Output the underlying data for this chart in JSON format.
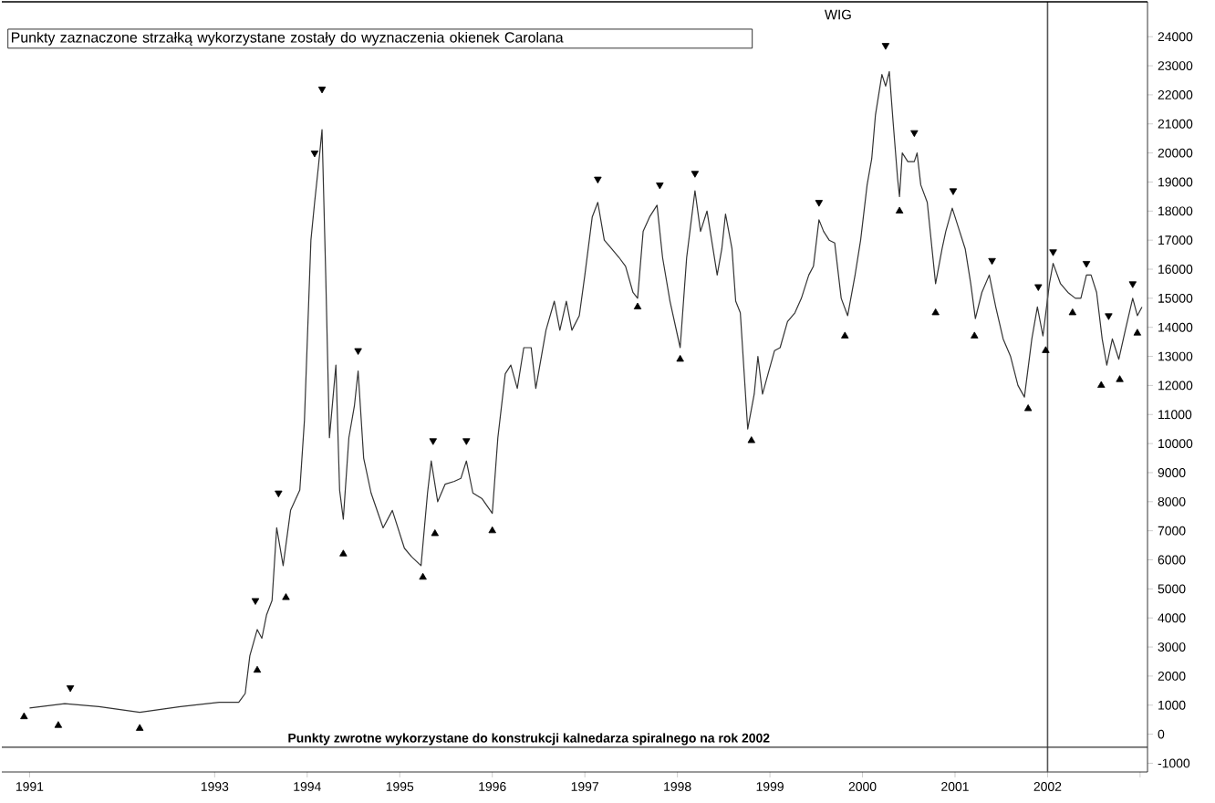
{
  "chart_data": {
    "type": "line",
    "title": "WIG",
    "annotations": [
      "Punkty zaznaczone strzałką wykorzystane zostały do wyznaczenia okienek Carolana"
    ],
    "series": [
      {
        "type": "line",
        "color": "#333333",
        "x": [
          1991.0,
          1991.38,
          1991.75,
          1992.19,
          1992.63,
          1993.05,
          1993.26,
          1993.33,
          1993.38,
          1993.46,
          1993.51,
          1993.56,
          1993.62,
          1993.67,
          1993.74,
          1993.82,
          1993.92,
          1993.97,
          1994.04,
          1994.08,
          1994.12,
          1994.16,
          1994.2,
          1994.24,
          1994.31,
          1994.35,
          1994.39,
          1994.45,
          1994.51,
          1994.55,
          1994.61,
          1994.69,
          1994.82,
          1994.92,
          1995.05,
          1995.13,
          1995.23,
          1995.3,
          1995.34,
          1995.41,
          1995.49,
          1995.59,
          1995.66,
          1995.72,
          1995.79,
          1995.89,
          1996.0,
          1996.06,
          1996.14,
          1996.2,
          1996.27,
          1996.34,
          1996.42,
          1996.47,
          1996.58,
          1996.67,
          1996.73,
          1996.8,
          1996.86,
          1996.94,
          1997.0,
          1997.08,
          1997.14,
          1997.21,
          1997.29,
          1997.37,
          1997.44,
          1997.52,
          1997.57,
          1997.63,
          1997.7,
          1997.78,
          1997.84,
          1997.92,
          1998.03,
          1998.1,
          1998.19,
          1998.25,
          1998.32,
          1998.43,
          1998.48,
          1998.52,
          1998.59,
          1998.63,
          1998.68,
          1998.76,
          1998.83,
          1998.87,
          1998.92,
          1998.98,
          1999.05,
          1999.11,
          1999.19,
          1999.27,
          1999.34,
          1999.42,
          1999.47,
          1999.53,
          1999.58,
          1999.64,
          1999.7,
          1999.77,
          1999.84,
          1999.92,
          1999.98,
          2000.05,
          2000.1,
          2000.14,
          2000.21,
          2000.25,
          2000.29,
          2000.33,
          2000.38,
          2000.4,
          2000.43,
          2000.49,
          2000.56,
          2000.59,
          2000.63,
          2000.7,
          2000.79,
          2000.86,
          2000.9,
          2000.97,
          2001.05,
          2001.11,
          2001.17,
          2001.22,
          2001.29,
          2001.37,
          2001.44,
          2001.52,
          2001.6,
          2001.68,
          2001.75,
          2001.83,
          2001.89,
          2001.95,
          2002.02,
          2002.06,
          2002.14,
          2002.22,
          2002.3,
          2002.36,
          2002.42,
          2002.47,
          2002.53,
          2002.59,
          2002.64,
          2002.7,
          2002.77,
          2002.84,
          2002.92,
          2002.97,
          2003.02
        ],
        "values": [
          900,
          1050,
          950,
          750,
          950,
          1100,
          1100,
          1400,
          2700,
          3600,
          3300,
          4100,
          4600,
          7100,
          5800,
          7700,
          8400,
          10800,
          17000,
          18300,
          19500,
          20800,
          15800,
          10200,
          12700,
          8400,
          7400,
          10200,
          11300,
          12500,
          9500,
          8300,
          7100,
          7700,
          6400,
          6100,
          5800,
          8300,
          9400,
          8000,
          8600,
          8700,
          8800,
          9400,
          8300,
          8100,
          7600,
          10200,
          12400,
          12700,
          11900,
          13300,
          13300,
          11900,
          13900,
          14900,
          13900,
          14900,
          13900,
          14400,
          15800,
          17800,
          18300,
          17000,
          16700,
          16400,
          16100,
          15200,
          15000,
          17300,
          17800,
          18200,
          16400,
          14900,
          13300,
          16400,
          18700,
          17300,
          18000,
          15800,
          16700,
          17900,
          16700,
          14900,
          14500,
          10500,
          11700,
          13000,
          11700,
          12400,
          13200,
          13300,
          14200,
          14500,
          15000,
          15800,
          16100,
          17700,
          17300,
          17000,
          16900,
          15000,
          14400,
          15800,
          17000,
          18900,
          19800,
          21300,
          22700,
          22300,
          22800,
          21100,
          19100,
          18500,
          20000,
          19700,
          19700,
          20000,
          18900,
          18300,
          15500,
          16700,
          17300,
          18100,
          17300,
          16700,
          15500,
          14300,
          15200,
          15800,
          14700,
          13600,
          13000,
          12000,
          11600,
          13600,
          14700,
          13700,
          15500,
          16200,
          15500,
          15200,
          15000,
          15000,
          15800,
          15800,
          15200,
          13600,
          12700,
          13600,
          12900,
          13900,
          15000,
          14400,
          14700
        ]
      },
      {
        "type": "scatter",
        "color": "#000000",
        "marker": "triangle-down",
        "x": [
          1991.44,
          1993.44,
          1993.69,
          1994.08,
          1994.16,
          1994.55,
          1995.36,
          1995.72,
          1997.14,
          1997.81,
          1998.19,
          1999.53,
          2000.25,
          2000.56,
          2000.98,
          2001.4,
          2001.9,
          2002.06,
          2002.42,
          2002.66,
          2002.92
        ],
        "values": [
          1600,
          4600,
          8300,
          20000,
          22200,
          13200,
          10100,
          10100,
          19100,
          18900,
          19300,
          18300,
          23700,
          20700,
          18700,
          16300,
          15400,
          16600,
          16200,
          14400,
          15500
        ]
      },
      {
        "type": "scatter",
        "color": "#000000",
        "marker": "triangle",
        "x": [
          1990.94,
          1991.31,
          1992.19,
          1993.46,
          1993.77,
          1994.39,
          1995.25,
          1995.38,
          1996.0,
          1997.57,
          1998.03,
          1998.8,
          1999.81,
          2000.4,
          2000.79,
          2001.21,
          2001.79,
          2001.98,
          2002.27,
          2002.58,
          2002.78,
          2002.97
        ],
        "values": [
          600,
          300,
          200,
          2200,
          4700,
          6200,
          5400,
          6900,
          7000,
          14700,
          12900,
          10100,
          13700,
          18000,
          14500,
          13700,
          11200,
          13200,
          14500,
          12000,
          12200,
          13800
        ]
      }
    ],
    "xlim": [
      1990.7,
      2003.08
    ],
    "ylim": [
      -1300,
      25200
    ],
    "xticks": [
      1991,
      1993,
      1994,
      1995,
      1996,
      1997,
      1998,
      1999,
      2000,
      2001,
      2002,
      {
        "value": 2003,
        "label": null
      }
    ],
    "yticks": [
      -1000,
      0,
      1000,
      2000,
      3000,
      4000,
      5000,
      6000,
      7000,
      8000,
      9000,
      10000,
      11000,
      12000,
      13000,
      14000,
      15000,
      16000,
      17000,
      18000,
      19000,
      20000,
      21000,
      22000,
      23000,
      24000
    ],
    "ref_lines": [
      {
        "axis": "x",
        "value": 2002,
        "color": "#555555"
      },
      {
        "axis": "y",
        "value": -450,
        "color": "#333333",
        "label": "Punkty zwrotne wykorzystane do konstrukcji kalnedarza spiralnego na rok 2002"
      }
    ],
    "grid": false
  }
}
